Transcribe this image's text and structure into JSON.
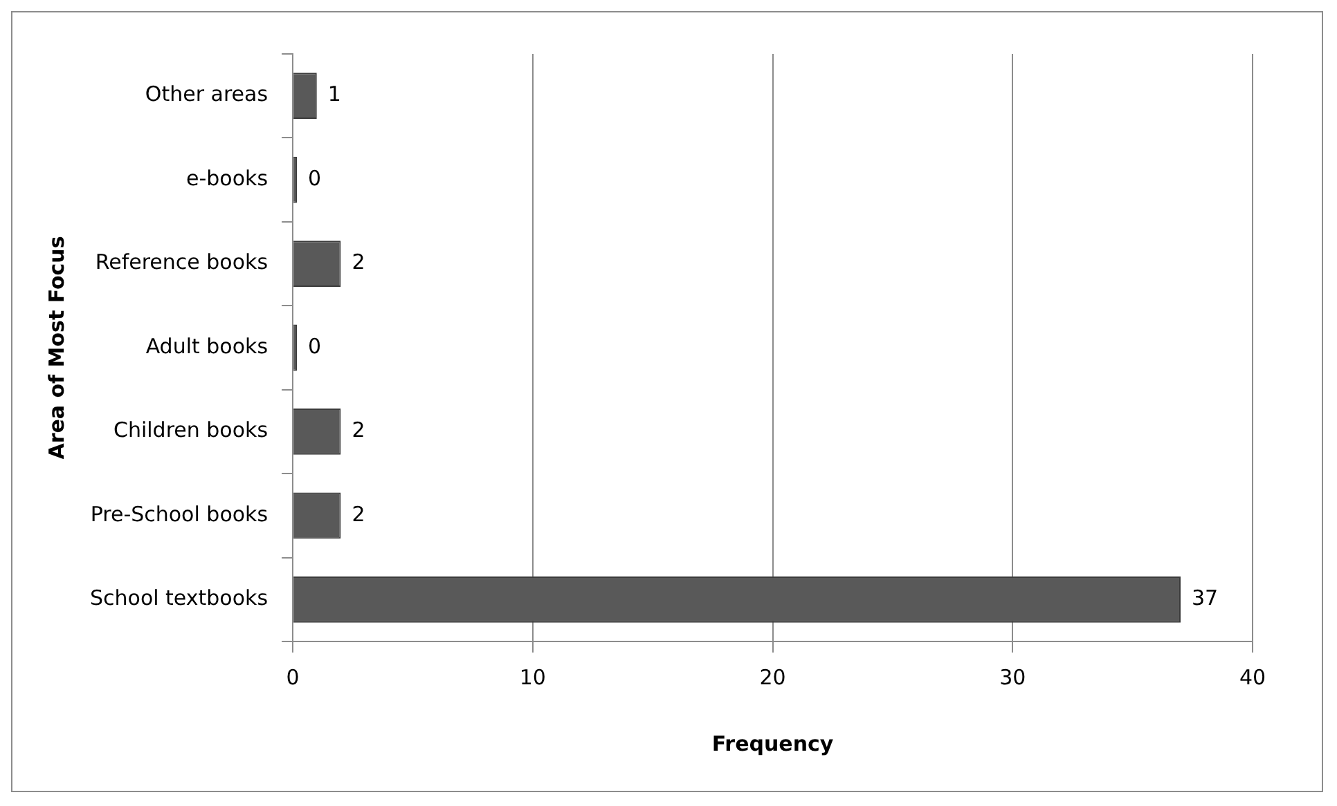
{
  "chart_data": {
    "type": "bar",
    "orientation": "horizontal",
    "xlabel": "Frequency",
    "ylabel": "Area of Most Focus",
    "categories": [
      "Other areas",
      "e-books",
      "Reference books",
      "Adult books",
      "Children books",
      "Pre-School books",
      "School textbooks"
    ],
    "values": [
      1,
      0,
      2,
      0,
      2,
      2,
      37
    ],
    "color": "#595959",
    "xlim": [
      0,
      40
    ],
    "xticks": [
      0,
      10,
      20,
      30,
      40
    ],
    "grid": "x",
    "data_labels": true,
    "legend": false
  }
}
